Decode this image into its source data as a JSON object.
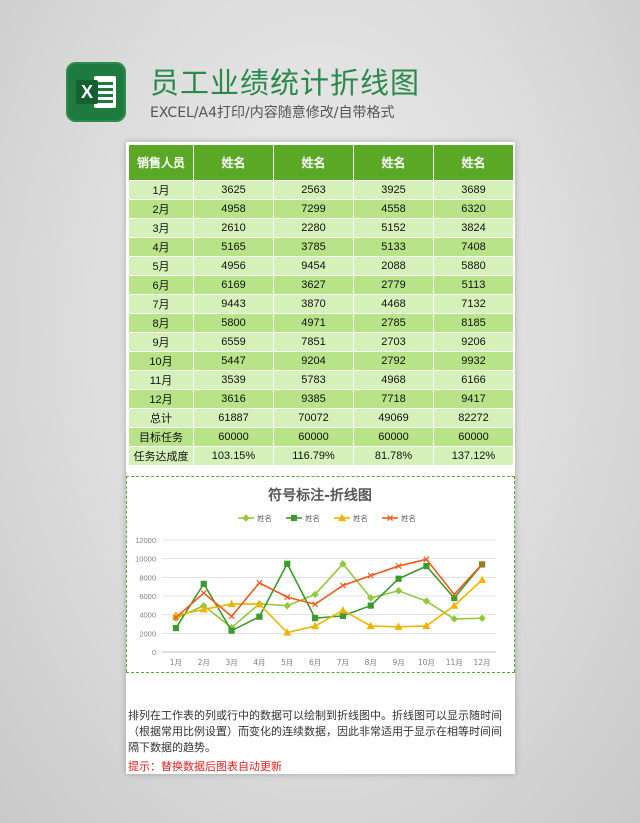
{
  "header": {
    "title": "员工业绩统计折线图",
    "subtitle": "EXCEL/A4打印/内容随意修改/自带格式"
  },
  "table": {
    "columns": [
      "销售人员",
      "姓名",
      "姓名",
      "姓名",
      "姓名"
    ],
    "rows": [
      [
        "1月",
        "3625",
        "2563",
        "3925",
        "3689"
      ],
      [
        "2月",
        "4958",
        "7299",
        "4558",
        "6320"
      ],
      [
        "3月",
        "2610",
        "2280",
        "5152",
        "3824"
      ],
      [
        "4月",
        "5165",
        "3785",
        "5133",
        "7408"
      ],
      [
        "5月",
        "4956",
        "9454",
        "2088",
        "5880"
      ],
      [
        "6月",
        "6169",
        "3627",
        "2779",
        "5113"
      ],
      [
        "7月",
        "9443",
        "3870",
        "4468",
        "7132"
      ],
      [
        "8月",
        "5800",
        "4971",
        "2785",
        "8185"
      ],
      [
        "9月",
        "6559",
        "7851",
        "2703",
        "9206"
      ],
      [
        "10月",
        "5447",
        "9204",
        "2792",
        "9932"
      ],
      [
        "11月",
        "3539",
        "5783",
        "4968",
        "6166"
      ],
      [
        "12月",
        "3616",
        "9385",
        "7718",
        "9417"
      ],
      [
        "总计",
        "61887",
        "70072",
        "49069",
        "82272"
      ],
      [
        "目标任务",
        "60000",
        "60000",
        "60000",
        "60000"
      ],
      [
        "任务达成度",
        "103.15%",
        "116.79%",
        "81.78%",
        "137.12%"
      ]
    ]
  },
  "chart_data": {
    "type": "line",
    "title": "符号标注-折线图",
    "categories": [
      "1月",
      "2月",
      "3月",
      "4月",
      "5月",
      "6月",
      "7月",
      "8月",
      "9月",
      "10月",
      "11月",
      "12月"
    ],
    "ylim": [
      0,
      12000
    ],
    "yticks": [
      "0",
      "2000",
      "4000",
      "6000",
      "8000",
      "10000",
      "12000"
    ],
    "legend_position": "top",
    "grid": true,
    "series": [
      {
        "name": "姓名",
        "color": "#92c83e",
        "marker": "diamond",
        "values": [
          3625,
          4958,
          2610,
          5165,
          4956,
          6169,
          9443,
          5800,
          6559,
          5447,
          3539,
          3616
        ]
      },
      {
        "name": "姓名",
        "color": "#3c9a2e",
        "marker": "square",
        "values": [
          2563,
          7299,
          2280,
          3785,
          9454,
          3627,
          3870,
          4971,
          7851,
          9204,
          5783,
          9385
        ]
      },
      {
        "name": "姓名",
        "color": "#f0b400",
        "marker": "triangle",
        "values": [
          3925,
          4558,
          5152,
          5133,
          2088,
          2779,
          4468,
          2785,
          2703,
          2792,
          4968,
          7718
        ]
      },
      {
        "name": "姓名",
        "color": "#f25a1a",
        "marker": "x",
        "values": [
          3689,
          6320,
          3824,
          7408,
          5880,
          5113,
          7132,
          8185,
          9206,
          9932,
          6166,
          9417
        ]
      }
    ]
  },
  "description": "排列在工作表的列或行中的数据可以绘制到折线图中。折线图可以显示随时间（根据常用比例设置）而变化的连续数据，因此非常适用于显示在相等时间间隔下数据的趋势。",
  "tip": "提示：替换数据后图表自动更新"
}
